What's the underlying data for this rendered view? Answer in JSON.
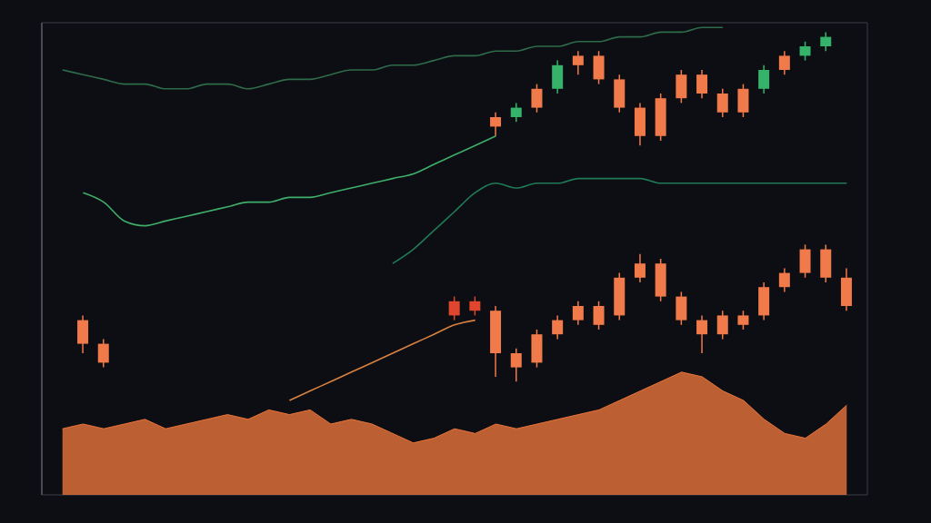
{
  "chart_data": {
    "type": "candlestick",
    "grid": true,
    "tick_labels": false,
    "xlim": [
      0,
      40
    ],
    "xticks": [
      0,
      10,
      20,
      30,
      40
    ],
    "ylim": [
      0,
      100
    ],
    "yticks": [
      0,
      25,
      50,
      75,
      100
    ],
    "x": [
      1,
      2,
      3,
      4,
      5,
      6,
      7,
      8,
      9,
      10,
      11,
      12,
      13,
      14,
      15,
      16,
      17,
      18,
      19,
      20,
      21,
      22,
      23,
      24,
      25,
      26,
      27,
      28,
      29,
      30,
      31,
      32,
      33,
      34,
      35,
      36,
      37,
      38,
      39
    ],
    "series": [
      {
        "type": "area",
        "color": "#e8743b",
        "values": [
          14,
          15,
          14,
          15,
          16,
          14,
          15,
          16,
          17,
          16,
          18,
          17,
          18,
          15,
          16,
          15,
          13,
          11,
          12,
          14,
          13,
          15,
          14,
          15,
          16,
          17,
          18,
          20,
          22,
          24,
          26,
          25,
          22,
          20,
          16,
          13,
          12,
          15,
          19
        ]
      },
      {
        "type": "line",
        "color": "#2e6b4a",
        "values": [
          90,
          89,
          88,
          87,
          87,
          86,
          86,
          87,
          87,
          86,
          87,
          88,
          88,
          89,
          90,
          90,
          91,
          91,
          92,
          93,
          93,
          94,
          94,
          95,
          95,
          96,
          96,
          97,
          97,
          98,
          98,
          99,
          99,
          null,
          null,
          null,
          null,
          null,
          null
        ]
      },
      {
        "type": "line",
        "color": "#3fae6a",
        "values": [
          null,
          64,
          62,
          58,
          57,
          58,
          59,
          60,
          61,
          62,
          62,
          63,
          63,
          64,
          65,
          66,
          67,
          68,
          70,
          72,
          74,
          76,
          null,
          null,
          null,
          null,
          null,
          null,
          null,
          null,
          null,
          null,
          null,
          null,
          null,
          null,
          null,
          null,
          null
        ]
      },
      {
        "type": "line",
        "color": "#1f7a55",
        "values": [
          null,
          null,
          null,
          null,
          null,
          null,
          null,
          null,
          null,
          null,
          null,
          null,
          null,
          null,
          null,
          null,
          49,
          52,
          56,
          60,
          64,
          66,
          65,
          66,
          66,
          67,
          67,
          67,
          67,
          66,
          66,
          66,
          66,
          66,
          66,
          66,
          66,
          66,
          66
        ]
      },
      {
        "type": "line",
        "color": "#d9823f",
        "values": [
          null,
          null,
          null,
          null,
          null,
          null,
          null,
          null,
          null,
          null,
          null,
          20,
          22,
          24,
          26,
          28,
          30,
          32,
          34,
          36,
          37,
          null,
          null,
          null,
          null,
          null,
          null,
          null,
          null,
          null,
          null,
          null,
          null,
          null,
          null,
          null,
          null,
          null,
          null
        ]
      },
      {
        "type": "candlestick",
        "open": [
          null,
          null,
          null,
          null,
          null,
          null,
          null,
          null,
          null,
          null,
          null,
          null,
          null,
          null,
          null,
          null,
          null,
          null,
          null,
          null,
          null,
          78,
          80,
          82,
          86,
          91,
          93,
          88,
          82,
          76,
          84,
          89,
          85,
          81,
          86,
          90,
          93,
          95,
          null
        ],
        "high": [
          null,
          null,
          null,
          null,
          null,
          null,
          null,
          null,
          null,
          null,
          null,
          null,
          null,
          null,
          null,
          null,
          null,
          null,
          null,
          null,
          null,
          81,
          83,
          87,
          92,
          94,
          94,
          89,
          83,
          85,
          90,
          90,
          86,
          87,
          91,
          94,
          96,
          98,
          null
        ],
        "low": [
          null,
          null,
          null,
          null,
          null,
          null,
          null,
          null,
          null,
          null,
          null,
          null,
          null,
          null,
          null,
          null,
          null,
          null,
          null,
          null,
          null,
          76,
          79,
          81,
          85,
          89,
          87,
          81,
          74,
          75,
          83,
          84,
          80,
          80,
          85,
          89,
          92,
          94,
          null
        ],
        "close": [
          null,
          null,
          null,
          null,
          null,
          null,
          null,
          null,
          null,
          null,
          null,
          null,
          null,
          null,
          null,
          null,
          null,
          null,
          null,
          null,
          null,
          80,
          82,
          86,
          91,
          93,
          88,
          82,
          76,
          84,
          89,
          85,
          81,
          86,
          90,
          93,
          95,
          97,
          null
        ],
        "colors": [
          null,
          null,
          null,
          null,
          null,
          null,
          null,
          null,
          null,
          null,
          null,
          null,
          null,
          null,
          null,
          null,
          null,
          null,
          null,
          null,
          null,
          "#f07a4a",
          "#35b36a",
          "#f07a4a",
          "#35b36a",
          "#f07a4a",
          "#f07a4a",
          "#f07a4a",
          "#f07a4a",
          "#f07a4a",
          "#f07a4a",
          "#f07a4a",
          "#f07a4a",
          "#f07a4a",
          "#35b36a",
          "#f07a4a",
          "#35b36a",
          "#35b36a",
          null
        ]
      },
      {
        "type": "candlestick",
        "open": [
          null,
          37,
          32,
          null,
          null,
          null,
          null,
          null,
          null,
          null,
          null,
          null,
          null,
          null,
          null,
          null,
          null,
          null,
          null,
          38,
          41,
          39,
          30,
          28,
          34,
          37,
          40,
          38,
          46,
          49,
          42,
          37,
          34,
          38,
          38,
          44,
          47,
          52,
          46
        ],
        "high": [
          null,
          38,
          33,
          null,
          null,
          null,
          null,
          null,
          null,
          null,
          null,
          null,
          null,
          null,
          null,
          null,
          null,
          null,
          null,
          42,
          42,
          40,
          31,
          35,
          38,
          41,
          41,
          47,
          51,
          50,
          43,
          38,
          39,
          39,
          45,
          48,
          53,
          53,
          48
        ],
        "low": [
          null,
          30,
          27,
          null,
          null,
          null,
          null,
          null,
          null,
          null,
          null,
          null,
          null,
          null,
          null,
          null,
          null,
          null,
          null,
          37,
          38,
          25,
          24,
          27,
          33,
          36,
          35,
          37,
          45,
          41,
          36,
          30,
          33,
          35,
          37,
          43,
          46,
          45,
          39
        ],
        "close": [
          null,
          32,
          28,
          null,
          null,
          null,
          null,
          null,
          null,
          null,
          null,
          null,
          null,
          null,
          null,
          null,
          null,
          null,
          null,
          41,
          39,
          30,
          27,
          34,
          37,
          40,
          36,
          46,
          49,
          42,
          37,
          34,
          38,
          36,
          44,
          47,
          52,
          46,
          40
        ],
        "colors": [
          null,
          "#f07a4a",
          "#f07a4a",
          null,
          null,
          null,
          null,
          null,
          null,
          null,
          null,
          null,
          null,
          null,
          null,
          null,
          null,
          null,
          null,
          "#e0452e",
          "#e0452e",
          "#f07a4a",
          "#f07a4a",
          "#f07a4a",
          "#f07a4a",
          "#f07a4a",
          "#f07a4a",
          "#f07a4a",
          "#f07a4a",
          "#f07a4a",
          "#f07a4a",
          "#f07a4a",
          "#f07a4a",
          "#f07a4a",
          "#f07a4a",
          "#f07a4a",
          "#f07a4a",
          "#f07a4a",
          "#f07a4a"
        ]
      }
    ]
  }
}
